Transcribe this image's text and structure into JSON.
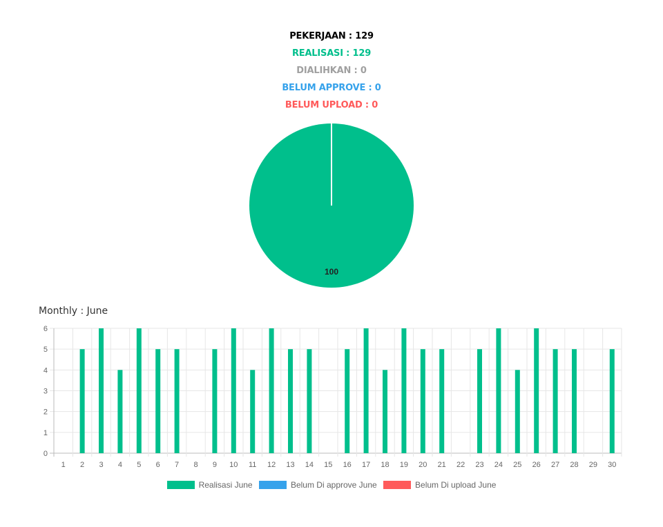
{
  "summary": {
    "pekerjaan": "PEKERJAAN : 129",
    "realisasi": "REALISASI : 129",
    "dialihkan": "DIALIHKAN : 0",
    "belum_approve": "BELUM APPROVE : 0",
    "belum_upload": "BELUM UPLOAD : 0"
  },
  "colors": {
    "realisasi": "#00bf8c",
    "dialihkan": "#a0a0a0",
    "belum_approve": "#36a2eb",
    "belum_upload": "#ff5a5a",
    "pekerjaan": "#000000"
  },
  "monthly_title": "Monthly : June",
  "chart_data": [
    {
      "type": "pie",
      "slices": [
        {
          "name": "Realisasi",
          "value": 100,
          "color": "#00bf8c"
        },
        {
          "name": "Dialihkan",
          "value": 0,
          "color": "#a0a0a0"
        },
        {
          "name": "Belum Approve",
          "value": 0,
          "color": "#36a2eb"
        },
        {
          "name": "Belum Upload",
          "value": 0,
          "color": "#ff5a5a"
        }
      ],
      "data_label": "100"
    },
    {
      "type": "bar",
      "categories": [
        "1",
        "2",
        "3",
        "4",
        "5",
        "6",
        "7",
        "8",
        "9",
        "10",
        "11",
        "12",
        "13",
        "14",
        "15",
        "16",
        "17",
        "18",
        "19",
        "20",
        "21",
        "22",
        "23",
        "24",
        "25",
        "26",
        "27",
        "28",
        "29",
        "30"
      ],
      "series": [
        {
          "name": "Realisasi June",
          "color": "#00bf8c",
          "values": [
            0,
            5,
            6,
            4,
            6,
            5,
            5,
            0,
            5,
            6,
            4,
            6,
            5,
            5,
            0,
            5,
            6,
            4,
            6,
            5,
            5,
            0,
            5,
            6,
            4,
            6,
            5,
            5,
            0,
            5
          ]
        },
        {
          "name": "Belum Di approve June",
          "color": "#36a2eb",
          "values": [
            0,
            0,
            0,
            0,
            0,
            0,
            0,
            0,
            0,
            0,
            0,
            0,
            0,
            0,
            0,
            0,
            0,
            0,
            0,
            0,
            0,
            0,
            0,
            0,
            0,
            0,
            0,
            0,
            0,
            0
          ]
        },
        {
          "name": "Belum Di upload June",
          "color": "#ff5a5a",
          "values": [
            0,
            0,
            0,
            0,
            0,
            0,
            0,
            0,
            0,
            0,
            0,
            0,
            0,
            0,
            0,
            0,
            0,
            0,
            0,
            0,
            0,
            0,
            0,
            0,
            0,
            0,
            0,
            0,
            0,
            0
          ]
        }
      ],
      "y_ticks": [
        "0",
        "1",
        "2",
        "3",
        "4",
        "5",
        "6"
      ],
      "ylim": [
        0,
        6
      ],
      "grid": true,
      "legend_position": "bottom"
    }
  ]
}
